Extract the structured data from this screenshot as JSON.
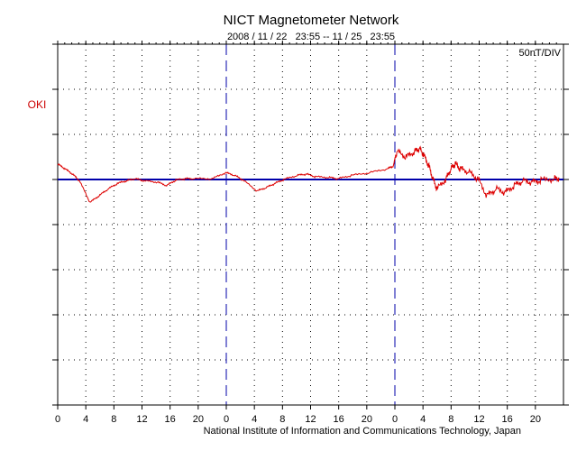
{
  "chart_data": {
    "type": "line",
    "title": "NICT Magnetometer Network",
    "subtitle": "2008 / 11 / 22   23:55 -- 11 / 25   23:55",
    "scale_label": "50nT/DIV",
    "station": "OKI",
    "footer": "National Institute of Information and Communications Technology, Japan",
    "x_unit": "hours since start",
    "xlim": [
      0,
      72
    ],
    "y_unit": "nT relative to baseline",
    "ylim": [
      -250,
      150
    ],
    "y_div": 50,
    "x_tick_labels": [
      "0",
      "4",
      "8",
      "12",
      "16",
      "20",
      "0",
      "4",
      "8",
      "12",
      "16",
      "20",
      "0",
      "4",
      "8",
      "12",
      "16",
      "20"
    ],
    "day_boundaries": [
      24,
      48
    ],
    "colors": {
      "trace": "#dd0000",
      "baseline": "#0000aa",
      "station_label": "#cc0000",
      "day_lines": "#0000aa"
    },
    "series": [
      {
        "name": "OKI",
        "x": [
          0,
          1.0,
          2.1,
          3.1,
          4.6,
          5.9,
          7.2,
          8.5,
          9.8,
          11.0,
          12.3,
          14.2,
          15.5,
          16.8,
          18.1,
          19.4,
          22.0,
          23.9,
          25.2,
          26.4,
          28.4,
          29.7,
          30.9,
          32.2,
          34.1,
          35.4,
          36.7,
          38.6,
          39.9,
          41.8,
          44.4,
          47.0,
          47.8,
          47.9,
          48.3,
          49.6,
          50.8,
          51.5,
          52.1,
          52.8,
          53.4,
          54.0,
          55.3,
          56.0,
          56.6,
          57.3,
          58.5,
          59.8,
          61.1,
          62.4,
          63.7,
          65.0,
          66.2,
          67.5,
          68.8,
          70.7,
          71.4
        ],
        "y": [
          17,
          12,
          6,
          -1.5,
          -25.5,
          -18,
          -10.5,
          -4.5,
          -1.5,
          0.8,
          -1.5,
          -3,
          -6.8,
          -0.8,
          0.8,
          0.8,
          0.8,
          7.5,
          4.5,
          -0.8,
          -12.8,
          -9,
          -4.5,
          0,
          4.5,
          6,
          3,
          2.3,
          0.8,
          4.5,
          7.5,
          12,
          15,
          19.5,
          30.8,
          24.8,
          30.8,
          34.5,
          27,
          15.8,
          0.8,
          -10.5,
          0.8,
          12,
          17.3,
          12,
          8.3,
          0.8,
          -18,
          -10.5,
          -14.3,
          -6.8,
          -1.5,
          -3,
          -0.8,
          0.8,
          1.5
        ]
      }
    ]
  }
}
